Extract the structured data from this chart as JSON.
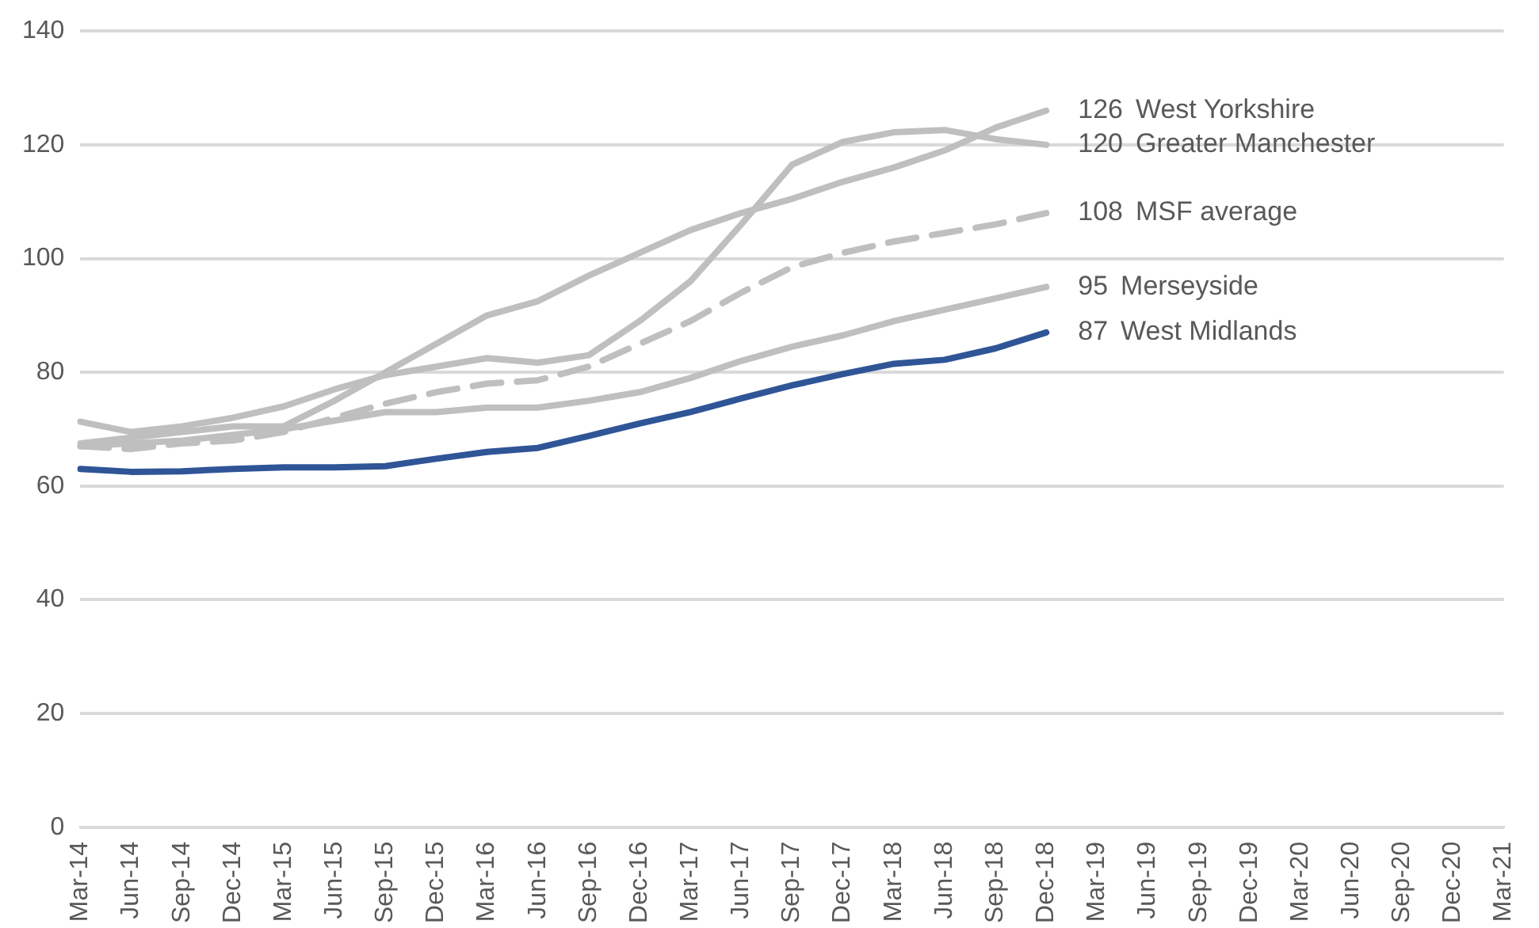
{
  "chart_data": {
    "type": "line",
    "categories": [
      "Mar-14",
      "Jun-14",
      "Sep-14",
      "Dec-14",
      "Mar-15",
      "Jun-15",
      "Sep-15",
      "Dec-15",
      "Mar-16",
      "Jun-16",
      "Sep-16",
      "Dec-16",
      "Mar-17",
      "Jun-17",
      "Sep-17",
      "Dec-17",
      "Mar-18",
      "Jun-18",
      "Sep-18",
      "Dec-18",
      "Mar-19",
      "Jun-19",
      "Sep-19",
      "Dec-19",
      "Mar-20",
      "Jun-20",
      "Sep-20",
      "Dec-20",
      "Mar-21"
    ],
    "series": [
      {
        "name": "West Yorkshire",
        "color": "#bfbfbf",
        "values": [
          67.5,
          68.5,
          69.5,
          70.5,
          70.5,
          75,
          80,
          85,
          90,
          92.5,
          97,
          101,
          105,
          108,
          110.5,
          113.5,
          116,
          119,
          123,
          126,
          null,
          null,
          null,
          null,
          null,
          null,
          null,
          null,
          null
        ],
        "value_labels": [
          null,
          null,
          null,
          null,
          null,
          null,
          null,
          null,
          null,
          null,
          null,
          null,
          null,
          null,
          null,
          null,
          null,
          null,
          null,
          "126",
          null,
          null,
          null,
          null,
          null,
          null,
          null,
          null,
          null
        ]
      },
      {
        "name": "Greater Manchester",
        "color": "#bfbfbf",
        "values": [
          71.3,
          69.5,
          70.5,
          72,
          74,
          77,
          79.5,
          81,
          82.5,
          81.7,
          83,
          89,
          96,
          106,
          116.5,
          120.5,
          122.2,
          122.6,
          121,
          120,
          null,
          null,
          null,
          null,
          null,
          null,
          null,
          null,
          null
        ],
        "value_labels": [
          null,
          null,
          null,
          null,
          null,
          null,
          null,
          null,
          null,
          null,
          null,
          null,
          null,
          null,
          null,
          null,
          null,
          null,
          null,
          "120",
          null,
          null,
          null,
          null,
          null,
          null,
          null,
          null,
          null
        ]
      },
      {
        "name": "MSF average",
        "color": "#bfbfbf",
        "line_style": "dashed",
        "values": [
          67,
          66.5,
          67.5,
          68,
          69.5,
          72,
          74.5,
          76.5,
          78,
          78.6,
          81,
          85,
          89,
          94,
          98.5,
          101,
          103,
          104.5,
          106,
          108,
          null,
          null,
          null,
          null,
          null,
          null,
          null,
          null,
          null
        ],
        "value_labels": [
          null,
          null,
          null,
          null,
          null,
          null,
          null,
          null,
          null,
          null,
          null,
          null,
          null,
          null,
          null,
          null,
          null,
          null,
          null,
          "108",
          null,
          null,
          null,
          null,
          null,
          null,
          null,
          null,
          null
        ]
      },
      {
        "name": "Merseyside",
        "color": "#bfbfbf",
        "values": [
          67,
          67.5,
          68,
          69,
          70,
          71.5,
          73,
          73,
          73.8,
          73.8,
          75,
          76.5,
          79,
          82,
          84.5,
          86.5,
          89,
          91,
          93,
          95,
          null,
          null,
          null,
          null,
          null,
          null,
          null,
          null,
          null
        ],
        "value_labels": [
          null,
          null,
          null,
          null,
          null,
          null,
          null,
          null,
          null,
          null,
          null,
          null,
          null,
          null,
          null,
          null,
          null,
          null,
          null,
          "95",
          null,
          null,
          null,
          null,
          null,
          null,
          null,
          null,
          null
        ]
      },
      {
        "name": "West Midlands",
        "color": "#2f5597",
        "values": [
          63,
          62.5,
          62.6,
          63,
          63.3,
          63.3,
          63.5,
          64.8,
          66,
          66.7,
          68.8,
          71,
          73,
          75.4,
          77.7,
          79.7,
          81.5,
          82.2,
          84.2,
          87,
          null,
          null,
          null,
          null,
          null,
          null,
          null,
          null,
          null
        ],
        "value_labels": [
          null,
          null,
          null,
          null,
          null,
          null,
          null,
          null,
          null,
          null,
          null,
          null,
          null,
          null,
          null,
          null,
          null,
          null,
          null,
          "87",
          null,
          null,
          null,
          null,
          null,
          null,
          null,
          null,
          null
        ]
      }
    ],
    "ylim": [
      0,
      140
    ],
    "yticks": [
      0,
      20,
      40,
      60,
      80,
      100,
      120,
      140
    ],
    "grid": "y",
    "legend": false,
    "marker": "none",
    "line_style": "solid"
  }
}
